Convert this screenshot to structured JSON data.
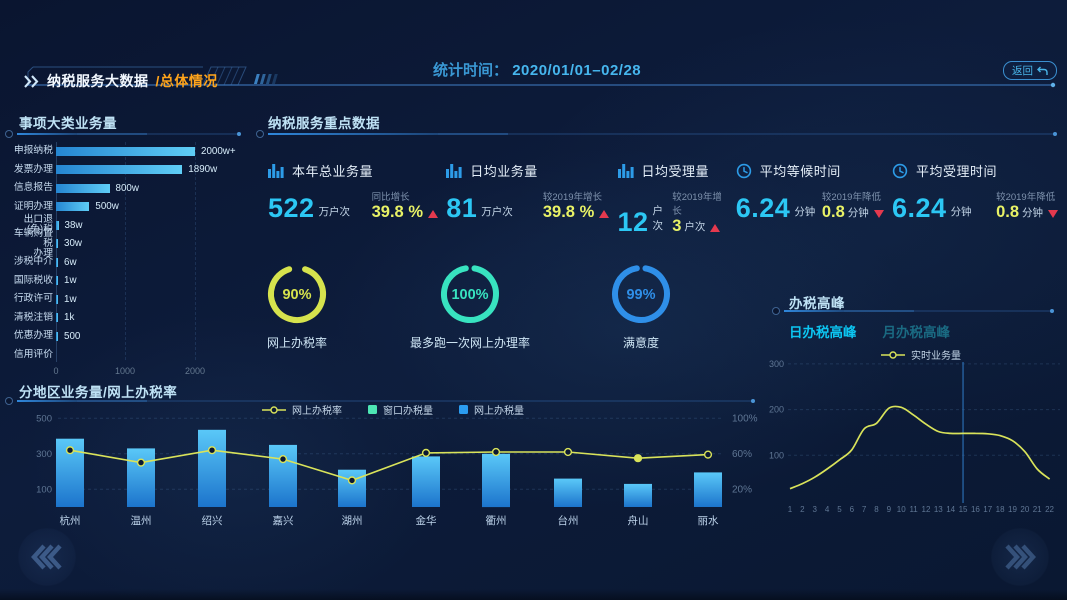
{
  "header": {
    "title_main": "纳税服务大数据",
    "title_sub": "/总体情况",
    "stat_time_label": "统计时间：",
    "stat_time_value": "2020/01/01–02/28",
    "back_label": "返回"
  },
  "category_panel": {
    "title": "事项大类业务量",
    "axis_ticks": [
      "0",
      "1000",
      "2000"
    ],
    "axis_max": 2200,
    "items": [
      {
        "label": "申报纳税",
        "value": 2080,
        "value_label": "2000w+"
      },
      {
        "label": "发票办理",
        "value": 1890,
        "value_label": "1890w"
      },
      {
        "label": "信息报告",
        "value": 800,
        "value_label": "800w"
      },
      {
        "label": "证明办理",
        "value": 500,
        "value_label": "500w"
      },
      {
        "label": "出口退(免)税",
        "value": 38,
        "value_label": "38w"
      },
      {
        "label": "车辆购置税\n办理",
        "value": 30,
        "value_label": "30w"
      },
      {
        "label": "涉税中介",
        "value": 6,
        "value_label": "6w"
      },
      {
        "label": "国际税收",
        "value": 1,
        "value_label": "1w"
      },
      {
        "label": "行政许可",
        "value": 1,
        "value_label": "1w"
      },
      {
        "label": "清税注销",
        "value": 0.1,
        "value_label": "1k"
      },
      {
        "label": "优惠办理",
        "value": 0.05,
        "value_label": "500"
      },
      {
        "label": "信用评价",
        "value": 0,
        "value_label": ""
      }
    ]
  },
  "kpi_panel": {
    "title": "纳税服务重点数据",
    "kpis": [
      {
        "icon": "bar-chart-icon",
        "title": "本年总业务量",
        "value": "522",
        "unit": "万户次",
        "sub_label": "同比增长",
        "sub_value": "39.8 %",
        "sub_unit": "",
        "trend": "up"
      },
      {
        "icon": "bar-chart-icon",
        "title": "日均业务量",
        "value": "81",
        "unit": "万户次",
        "sub_label": "较2019年增长",
        "sub_value": "39.8 %",
        "sub_unit": "",
        "trend": "up"
      },
      {
        "icon": "bar-chart-icon",
        "title": "日均受理量",
        "value": "12",
        "unit": "户次",
        "sub_label": "较2019年增长",
        "sub_value": "3",
        "sub_unit": "户次",
        "trend": "up"
      },
      {
        "icon": "clock-icon",
        "title": "平均等候时间",
        "value": "6.24",
        "unit": "分钟",
        "sub_label": "较2019年降低",
        "sub_value": "0.8",
        "sub_unit": "分钟",
        "trend": "down"
      },
      {
        "icon": "clock-icon",
        "title": "平均受理时间",
        "value": "6.24",
        "unit": "分钟",
        "sub_label": "较2019年降低",
        "sub_value": "0.8",
        "sub_unit": "分钟",
        "trend": "down"
      }
    ]
  },
  "donut_group": [
    {
      "percent": 90,
      "percent_label": "90%",
      "label": "网上办税率",
      "color": "#d6e34d"
    },
    {
      "percent": 100,
      "percent_label": "100%",
      "label": "最多跑一次网上办理率",
      "color": "#38e3c0"
    },
    {
      "percent": 99,
      "percent_label": "99%",
      "label": "满意度",
      "color": "#2f8fe8"
    }
  ],
  "peak_panel": {
    "title": "办税高峰",
    "tabs": [
      {
        "label": "日办税高峰",
        "active": true
      },
      {
        "label": "月办税高峰",
        "active": false
      }
    ],
    "legend_label": "实时业务量",
    "chart_data": {
      "type": "line",
      "series": [
        {
          "name": "实时业务量",
          "values": [
            27,
            38,
            52,
            70,
            90,
            112,
            158,
            170,
            203,
            205,
            188,
            168,
            152,
            148,
            148,
            148,
            147,
            143,
            132,
            108,
            70,
            48
          ]
        }
      ],
      "x": [
        1,
        2,
        3,
        4,
        5,
        6,
        7,
        8,
        9,
        10,
        11,
        12,
        13,
        14,
        15,
        16,
        17,
        18,
        19,
        20,
        21,
        22
      ],
      "ylim": [
        0,
        300
      ],
      "yticks": [
        100,
        200,
        300
      ],
      "highlight_x": 15,
      "line_color": "#d9e35a",
      "grid": true,
      "legend_position": "top"
    }
  },
  "region_panel": {
    "title": "分地区业务量/网上办税率",
    "legend": [
      {
        "label": "网上办税率",
        "type": "line",
        "color": "#d9e35a"
      },
      {
        "label": "窗口办税量",
        "type": "bar",
        "color": "#4de6b4"
      },
      {
        "label": "网上办税量",
        "type": "bar",
        "color": "#2b9cf0"
      }
    ],
    "chart_data": {
      "type": "bar+line",
      "categories": [
        "杭州",
        "温州",
        "绍兴",
        "嘉兴",
        "湖州",
        "金华",
        "衢州",
        "台州",
        "舟山",
        "丽水"
      ],
      "series": [
        {
          "name": "网上办税量",
          "type": "bar",
          "axis": "left",
          "values": [
            385,
            330,
            435,
            350,
            210,
            285,
            300,
            160,
            130,
            195
          ]
        },
        {
          "name": "网上办税率",
          "type": "line",
          "axis": "right",
          "values": [
            64,
            50,
            64,
            54,
            30,
            61,
            62,
            62,
            55,
            59
          ],
          "highlight_index": 8
        }
      ],
      "left_ylim": [
        0,
        500
      ],
      "left_yticks": [
        100,
        300,
        500
      ],
      "right_ylim": [
        0,
        100
      ],
      "right_ytick_labels": [
        "20%",
        "60%",
        "100%"
      ],
      "grid": true,
      "legend_position": "top"
    }
  },
  "nav": {
    "prev_icon": "chevrons-left-icon",
    "next_icon": "chevrons-right-icon"
  }
}
